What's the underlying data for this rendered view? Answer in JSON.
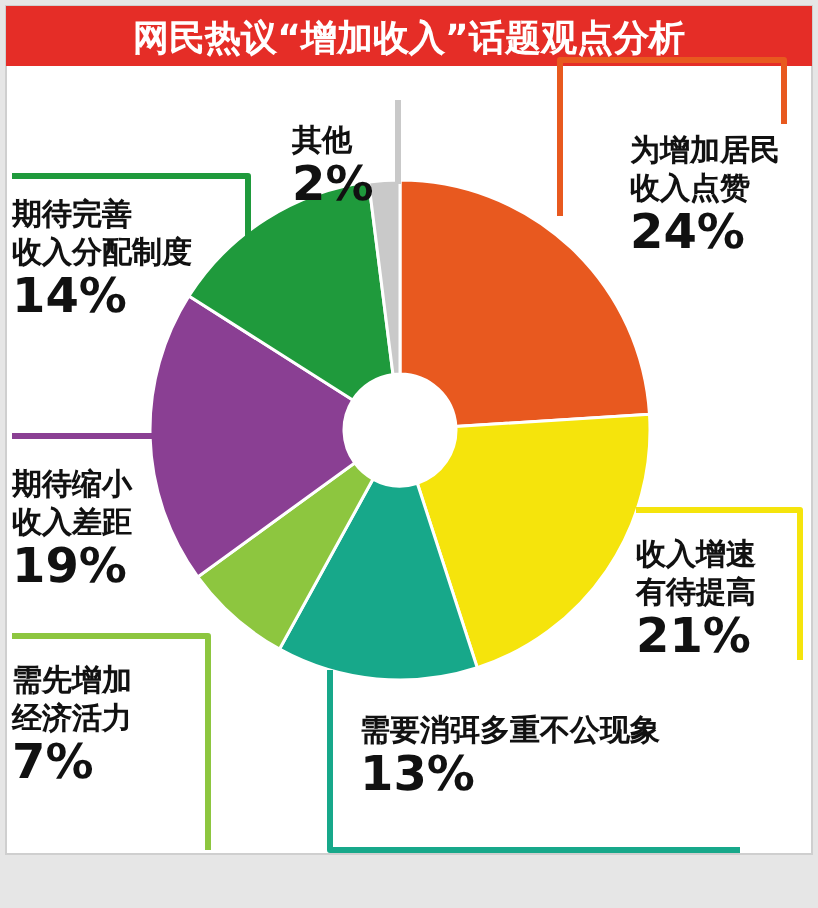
{
  "chart_data": {
    "type": "donut",
    "title": "网民热议“增加收入”话题观点分析",
    "categories": [
      "为增加居民收入点赞",
      "收入增速有待提高",
      "需要消弭多重不公现象",
      "需先增加经济活力",
      "期待缩小收入差距",
      "期待完善收入分配制度",
      "其他"
    ],
    "values": [
      24,
      21,
      13,
      7,
      19,
      14,
      2
    ],
    "value_labels": [
      "24%",
      "21%",
      "13%",
      "7%",
      "19%",
      "14%",
      "2%"
    ],
    "colors": [
      "#e8591f",
      "#f5e40c",
      "#17a88a",
      "#8dc63f",
      "#8a3f93",
      "#1f9a3c",
      "#c9c9c9"
    ]
  }
}
